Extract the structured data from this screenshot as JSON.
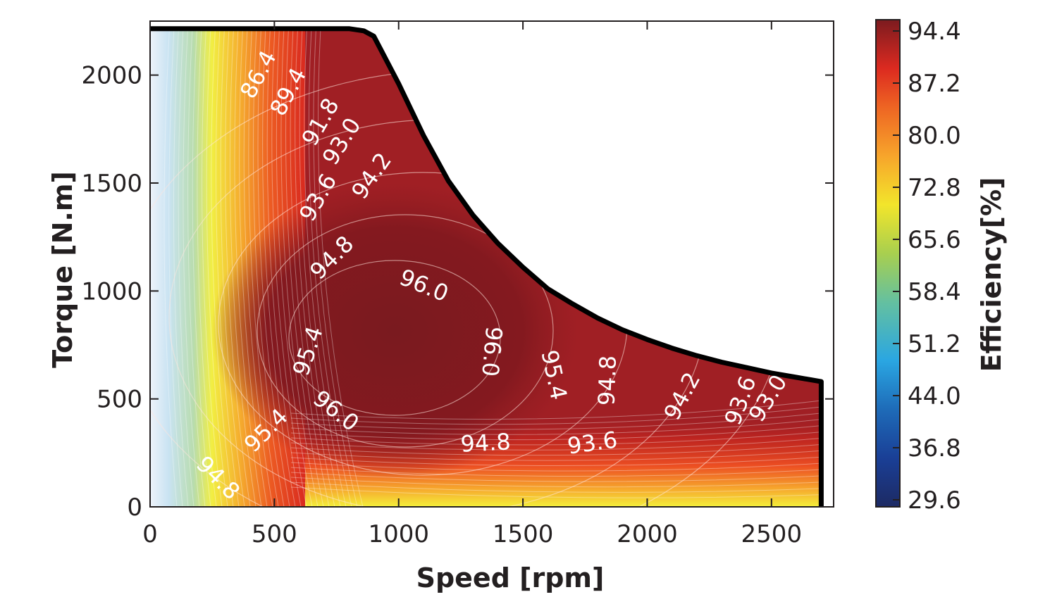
{
  "chart_data": {
    "type": "contour",
    "xlabel": "Speed [rpm]",
    "ylabel": "Torque [N.m]",
    "colorbar_label": "Efficiency[%]",
    "xlim": [
      0,
      2750
    ],
    "ylim": [
      0,
      2250
    ],
    "xticks": [
      0,
      500,
      1000,
      1500,
      2000,
      2500
    ],
    "yticks": [
      0,
      500,
      1000,
      1500,
      2000
    ],
    "colorbar_range": [
      29.6,
      97.0
    ],
    "colorbar_ticks": [
      "94.4",
      "87.2",
      "80.0",
      "72.8",
      "65.6",
      "58.4",
      "51.2",
      "44.0",
      "36.8",
      "29.6"
    ],
    "torque_limit_curve": {
      "speed": [
        0,
        800,
        860,
        900,
        1000,
        1100,
        1200,
        1300,
        1400,
        1500,
        1600,
        1700,
        1800,
        1900,
        2000,
        2100,
        2200,
        2300,
        2400,
        2500,
        2600,
        2700
      ],
      "torque": [
        2215,
        2215,
        2205,
        2180,
        1960,
        1720,
        1510,
        1350,
        1220,
        1110,
        1010,
        940,
        875,
        820,
        775,
        735,
        700,
        670,
        645,
        620,
        600,
        580
      ]
    },
    "contour_labels": [
      {
        "text": "86.4",
        "speed": 440,
        "torque": 2000,
        "angle": -62
      },
      {
        "text": "89.4",
        "speed": 560,
        "torque": 1920,
        "angle": -62
      },
      {
        "text": "91.8",
        "speed": 690,
        "torque": 1780,
        "angle": -60
      },
      {
        "text": "93.0",
        "speed": 775,
        "torque": 1690,
        "angle": -58
      },
      {
        "text": "94.2",
        "speed": 895,
        "torque": 1530,
        "angle": -55
      },
      {
        "text": "93.6",
        "speed": 680,
        "torque": 1430,
        "angle": -60
      },
      {
        "text": "94.8",
        "speed": 735,
        "torque": 1150,
        "angle": -45
      },
      {
        "text": "96.0",
        "speed": 1100,
        "torque": 1020,
        "angle": 22
      },
      {
        "text": "96.0",
        "speed": 1370,
        "torque": 720,
        "angle": 95
      },
      {
        "text": "95.4",
        "speed": 640,
        "torque": 720,
        "angle": -72
      },
      {
        "text": "95.4",
        "speed": 1620,
        "torque": 610,
        "angle": 78
      },
      {
        "text": "94.8",
        "speed": 1845,
        "torque": 585,
        "angle": -88
      },
      {
        "text": "94.2",
        "speed": 2145,
        "torque": 510,
        "angle": -62
      },
      {
        "text": "93.6",
        "speed": 2380,
        "torque": 490,
        "angle": -70
      },
      {
        "text": "93.0",
        "speed": 2490,
        "torque": 500,
        "angle": -58
      },
      {
        "text": "96.0",
        "speed": 745,
        "torque": 440,
        "angle": 38
      },
      {
        "text": "95.4",
        "speed": 470,
        "torque": 350,
        "angle": -45
      },
      {
        "text": "94.8",
        "speed": 1350,
        "torque": 290,
        "angle": -3
      },
      {
        "text": "93.6",
        "speed": 1780,
        "torque": 290,
        "angle": -8
      },
      {
        "text": "94.8",
        "speed": 270,
        "torque": 130,
        "angle": 45
      }
    ],
    "colors": {
      "core": "#7c1b1f",
      "high": "#a01f24",
      "mid": "#d42a1f",
      "orange": "#f07f22",
      "yellow": "#f4e52a",
      "green": "#7cc15c",
      "cyan": "#4ab3e4",
      "blue": "#1b5caa",
      "navy": "#1d2a63",
      "boundary": "#000000"
    }
  }
}
